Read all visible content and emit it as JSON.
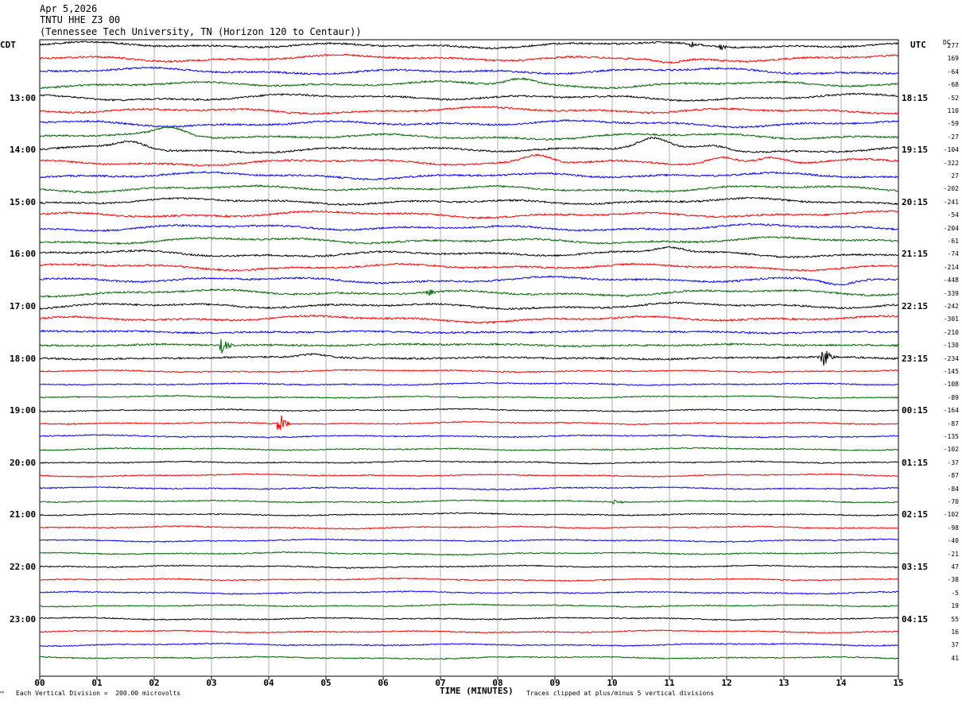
{
  "header": {
    "date": "Apr 5,2026",
    "station": "TNTU HHE Z3 00",
    "location": "(Tennessee Tech University, TN (Horizon 120 to Centaur))"
  },
  "left_zone": "CDT",
  "right_zone": "UTC",
  "dc_label": "DC",
  "footer": {
    "scale": "Each Vertical Division =  200.00 microvolts",
    "clip": "Traces clipped at plus/minus 5 vertical divisions",
    "corner": "™"
  },
  "colors": {
    "black": "#000000",
    "red": "#ff0000",
    "blue": "#0000ff",
    "green": "#006400",
    "grid": "#b0b0b0"
  },
  "chart_data": {
    "type": "line",
    "xlabel": "TIME (MINUTES)",
    "x_ticks": [
      "00",
      "01",
      "02",
      "03",
      "04",
      "05",
      "06",
      "07",
      "08",
      "09",
      "10",
      "11",
      "12",
      "13",
      "14",
      "15"
    ],
    "xlim": [
      0,
      15
    ],
    "left_hour_labels": [
      "13:00",
      "14:00",
      "15:00",
      "16:00",
      "17:00",
      "18:00",
      "19:00",
      "20:00",
      "21:00",
      "22:00",
      "23:00"
    ],
    "right_hour_labels": [
      "18:15",
      "19:15",
      "20:15",
      "21:15",
      "22:15",
      "23:15",
      "00:15",
      "01:15",
      "02:15",
      "03:15",
      "04:15"
    ],
    "trace_color_cycle": [
      "black",
      "red",
      "blue",
      "green"
    ],
    "dc_offsets": [
      277,
      169,
      -64,
      -68,
      -52,
      110,
      -59,
      -27,
      -104,
      -322,
      27,
      -202,
      -241,
      -54,
      -204,
      -61,
      -74,
      -214,
      -448,
      -339,
      -242,
      -301,
      -210,
      -130,
      -234,
      -145,
      -108,
      -89,
      -164,
      -87,
      -135,
      -102,
      -37,
      -87,
      -84,
      -70,
      -102,
      -98,
      -40,
      -21,
      47,
      -38,
      -5,
      19,
      55,
      16,
      37,
      41
    ],
    "events": [
      {
        "trace": 0,
        "minute": 11.4,
        "amp": 0.5,
        "kind": "burst"
      },
      {
        "trace": 0,
        "minute": 11.9,
        "amp": 0.4,
        "kind": "burst"
      },
      {
        "trace": 1,
        "minute": 11.0,
        "amp": -6,
        "kind": "dip"
      },
      {
        "trace": 3,
        "minute": 8.4,
        "amp": 8,
        "kind": "swell"
      },
      {
        "trace": 8,
        "minute": 1.6,
        "amp": 9,
        "kind": "swell"
      },
      {
        "trace": 7,
        "minute": 2.3,
        "amp": 9,
        "kind": "swell"
      },
      {
        "trace": 8,
        "minute": 10.7,
        "amp": 12,
        "kind": "swell"
      },
      {
        "trace": 8,
        "minute": 11.8,
        "amp": 6,
        "kind": "swell"
      },
      {
        "trace": 9,
        "minute": 8.7,
        "amp": 10,
        "kind": "swell"
      },
      {
        "trace": 9,
        "minute": 11.9,
        "amp": 8,
        "kind": "swell"
      },
      {
        "trace": 9,
        "minute": 12.8,
        "amp": 8,
        "kind": "swell"
      },
      {
        "trace": 16,
        "minute": 11.0,
        "amp": 7,
        "kind": "swell"
      },
      {
        "trace": 18,
        "minute": 13.95,
        "amp": -6,
        "kind": "dip"
      },
      {
        "trace": 19,
        "minute": 6.8,
        "amp": 0.6,
        "kind": "burst"
      },
      {
        "trace": 23,
        "minute": 3.2,
        "amp": 1.2,
        "kind": "burst"
      },
      {
        "trace": 24,
        "minute": 4.8,
        "amp": 5,
        "kind": "swell"
      },
      {
        "trace": 24,
        "minute": 13.7,
        "amp": 1.6,
        "kind": "burst"
      },
      {
        "trace": 29,
        "minute": 4.2,
        "amp": 1.4,
        "kind": "burst"
      },
      {
        "trace": 35,
        "minute": 10.0,
        "amp": 0.6,
        "kind": "burst"
      }
    ]
  }
}
